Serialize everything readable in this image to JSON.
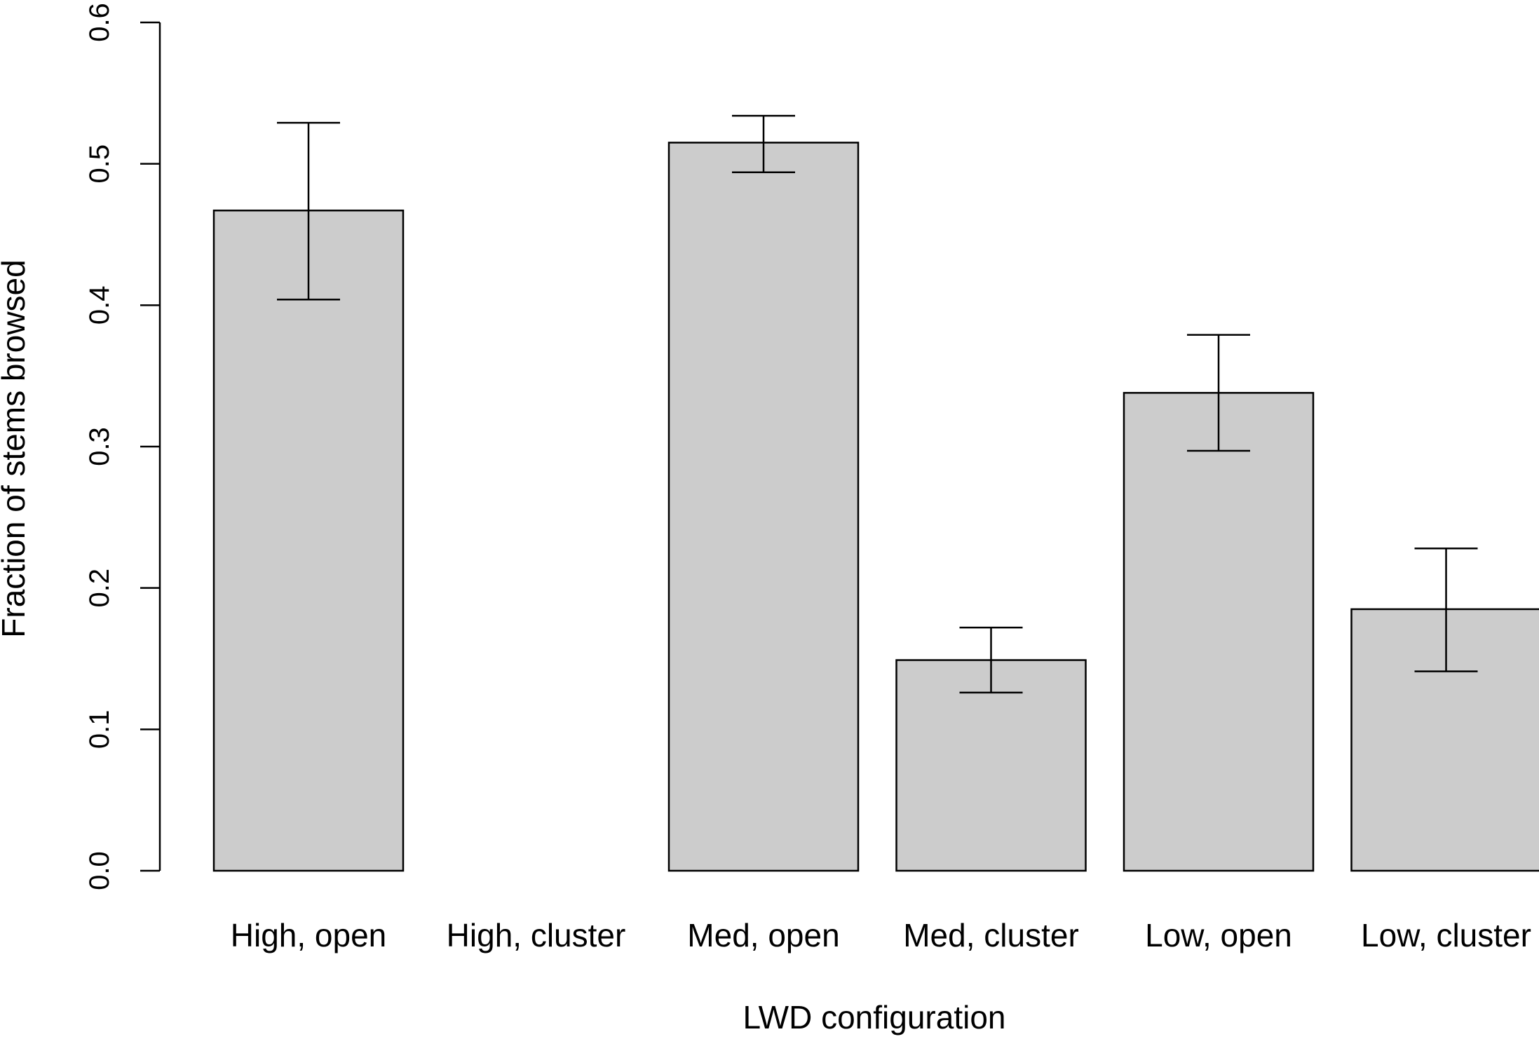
{
  "chart_data": {
    "type": "bar",
    "title": "",
    "xlabel": "LWD configuration",
    "ylabel": "Fraction of stems browsed",
    "categories": [
      "High, open",
      "High, cluster",
      "Med, open",
      "Med, cluster",
      "Low, open",
      "Low, cluster"
    ],
    "values": [
      0.467,
      0.0,
      0.515,
      0.149,
      0.338,
      0.185
    ],
    "error_lower": [
      0.404,
      0.0,
      0.494,
      0.126,
      0.297,
      0.141
    ],
    "error_upper": [
      0.529,
      0.0,
      0.534,
      0.172,
      0.379,
      0.228
    ],
    "ylim": [
      0,
      0.6
    ],
    "yticks": [
      "0.0",
      "0.1",
      "0.2",
      "0.3",
      "0.4",
      "0.5",
      "0.6"
    ],
    "bar_color": "#cccccc",
    "grid": false,
    "legend": "none"
  }
}
